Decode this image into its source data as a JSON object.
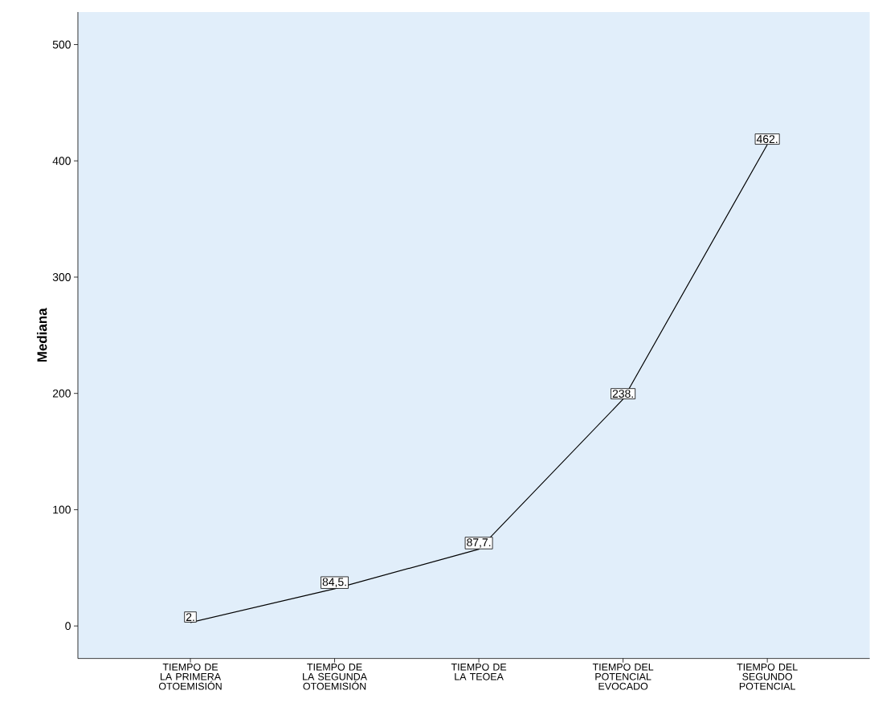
{
  "chart_data": {
    "type": "line",
    "ylabel": "Mediana",
    "categories": [
      "TIEMPO DE LA PRIMERA OTOEMISIÓN",
      "TIEMPO DE LA SEGUNDA OTOEMISIÓN",
      "TIEMPO DE LA TEOEA",
      "TIEMPO DEL POTENCIAL EVOCADO",
      "TIEMPO DEL SEGUNDO POTENCIAL"
    ],
    "series": [
      {
        "color": "#000000",
        "values": [
          3,
          32,
          66,
          195,
          414
        ]
      }
    ],
    "value_labels": [
      "2.",
      "84,5.",
      "87,7.",
      "238.",
      "462."
    ],
    "ylim": [
      -28,
      528
    ],
    "yticks": [
      0,
      100,
      200,
      300,
      400,
      500
    ],
    "marker": "none",
    "line_style": "solid",
    "legend": false,
    "grid": false
  }
}
